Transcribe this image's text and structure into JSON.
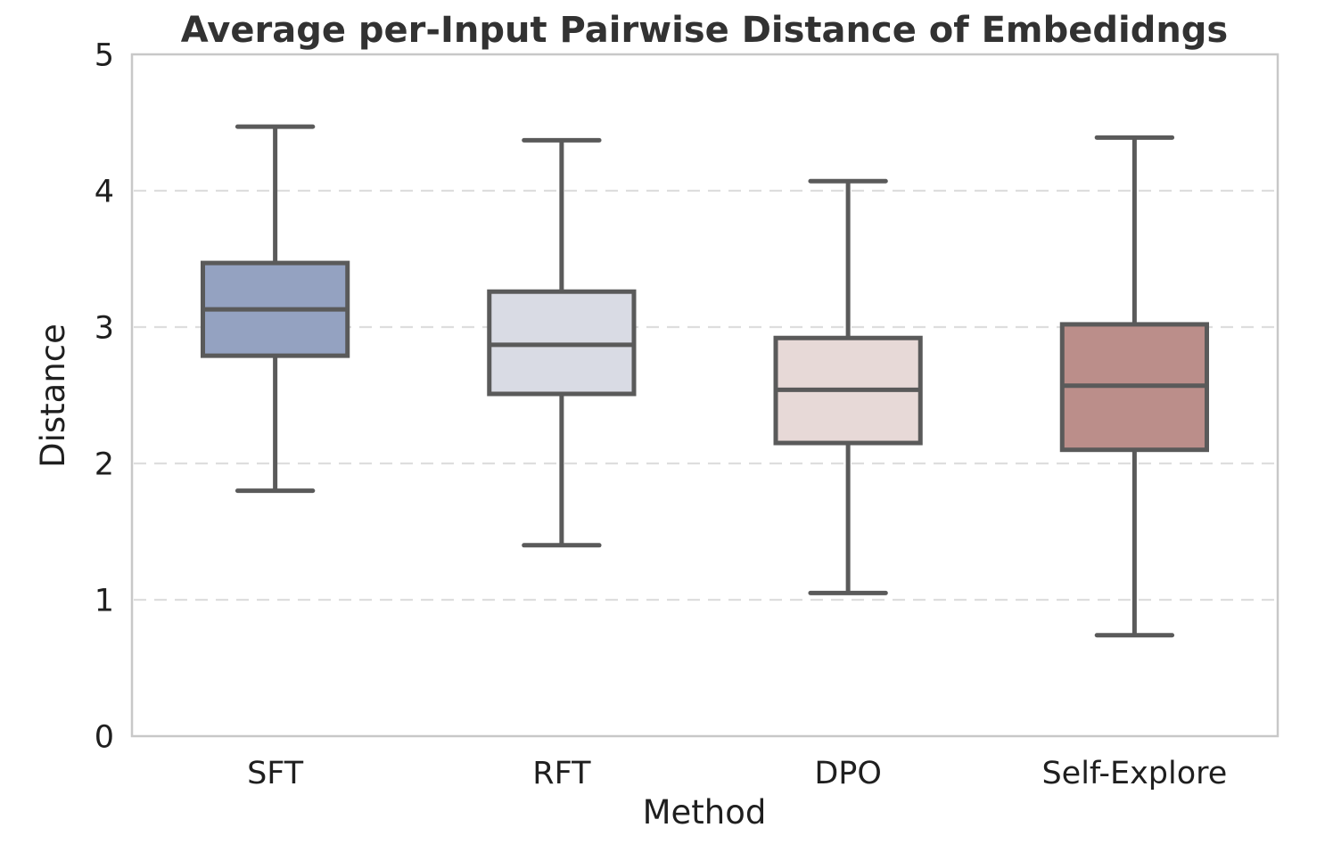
{
  "chart_data": {
    "type": "boxplot",
    "title": "Average per-Input Pairwise Distance of Embedidngs",
    "xlabel": "Method",
    "ylabel": "Distance",
    "ylim": [
      0,
      5
    ],
    "yticks": [
      0,
      1,
      2,
      3,
      4,
      5
    ],
    "grid": {
      "axis": "y",
      "values": [
        1,
        2,
        3,
        4
      ],
      "style": "dashed",
      "on": true
    },
    "legend": "none",
    "categories": [
      "SFT",
      "RFT",
      "DPO",
      "Self-Explore"
    ],
    "series": [
      {
        "name": "SFT",
        "whisker_low": 1.8,
        "q1": 2.79,
        "median": 3.13,
        "q3": 3.47,
        "whisker_high": 4.47,
        "fill": "#94a2c1"
      },
      {
        "name": "RFT",
        "whisker_low": 1.4,
        "q1": 2.51,
        "median": 2.87,
        "q3": 3.26,
        "whisker_high": 4.37,
        "fill": "#d9dbe4"
      },
      {
        "name": "DPO",
        "whisker_low": 1.05,
        "q1": 2.15,
        "median": 2.54,
        "q3": 2.92,
        "whisker_high": 4.07,
        "fill": "#e7d9d7"
      },
      {
        "name": "Self-Explore",
        "whisker_low": 0.74,
        "q1": 2.1,
        "median": 2.57,
        "q3": 3.02,
        "whisker_high": 4.39,
        "fill": "#bb8e8a"
      }
    ],
    "colors": {
      "line": "#5a5a5a",
      "grid": "#dedede",
      "spine": "#c8c8c8",
      "tick_text": "#1f1f1f",
      "title_text": "#323232",
      "background": "#ffffff"
    }
  }
}
